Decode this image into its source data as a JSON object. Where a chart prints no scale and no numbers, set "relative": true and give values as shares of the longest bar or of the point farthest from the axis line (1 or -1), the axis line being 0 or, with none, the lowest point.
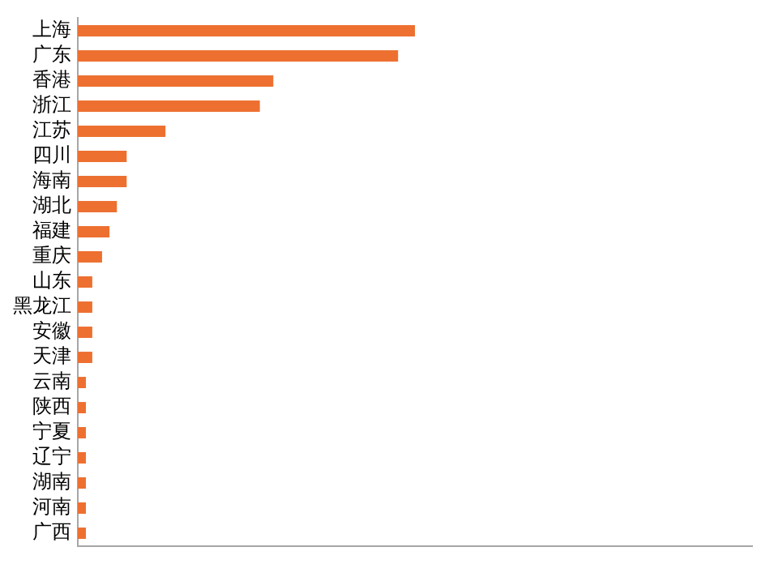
{
  "chart_data": {
    "type": "bar",
    "orientation": "horizontal",
    "relative": true,
    "legend": false,
    "grid": false,
    "categories": [
      "上海",
      "广东",
      "香港",
      "浙江",
      "江苏",
      "四川",
      "海南",
      "湖北",
      "福建",
      "重庆",
      "山东",
      "黑龙江",
      "安徽",
      "天津",
      "云南",
      "陕西",
      "宁夏",
      "辽宁",
      "湖南",
      "河南",
      "广西"
    ],
    "values": [
      1,
      0.95,
      0.58,
      0.54,
      0.26,
      0.145,
      0.145,
      0.116,
      0.094,
      0.072,
      0.043,
      0.043,
      0.043,
      0.043,
      0.024,
      0.024,
      0.024,
      0.024,
      0.024,
      0.024,
      0.024
    ],
    "color": "#ed7031"
  }
}
